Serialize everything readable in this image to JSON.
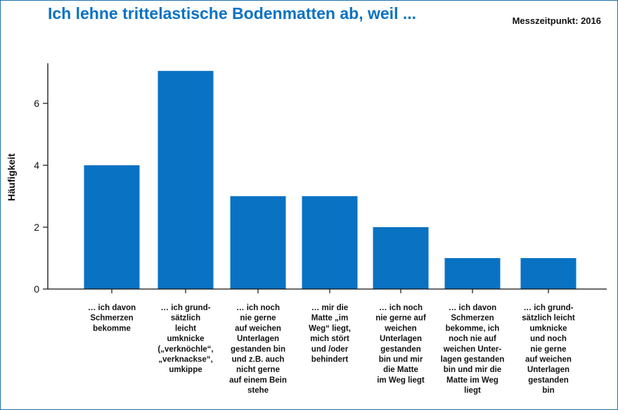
{
  "header": {
    "title": "Ich lehne trittelastische Bodenmatten ab, weil ...",
    "measurement": "Messzeitpunkt: 2016"
  },
  "colors": {
    "bar": "#0a72c3",
    "title": "#0a72c3",
    "axis": "#111111"
  },
  "chart_data": {
    "type": "bar",
    "title": "Ich lehne trittelastische Bodenmatten ab, weil ...",
    "xlabel": "",
    "ylabel": "Häufigkeit",
    "ylim": [
      0,
      7.3
    ],
    "yticks": [
      0,
      2,
      4,
      6
    ],
    "grid": false,
    "categories": [
      [
        "… ich davon",
        "Schmerzen",
        "bekomme"
      ],
      [
        "… ich grund-",
        "sätzlich",
        "leicht",
        "umknicke",
        "(„verknöchle“,",
        "„verknackse“,",
        "umkippe"
      ],
      [
        "… ich noch",
        "nie gerne",
        "auf weichen",
        "Unterlagen",
        "gestanden bin",
        "und z.B. auch",
        "nicht gerne",
        "auf einem Bein",
        "stehe"
      ],
      [
        "… mir die",
        "Matte „im",
        "Weg“ liegt,",
        "mich stört",
        "und /oder",
        "behindert"
      ],
      [
        "… ich noch",
        "nie gerne auf",
        "weichen",
        "Unterlagen",
        "gestanden",
        "bin und mir",
        "die Matte",
        "im Weg liegt"
      ],
      [
        "… ich davon",
        "Schmerzen",
        "bekomme, ich",
        "noch nie auf",
        "weichen Unter-",
        "lagen gestanden",
        "bin und mir die",
        "Matte im Weg",
        "liegt"
      ],
      [
        "… ich grund-",
        "sätzlich leicht",
        "umknicke",
        "und noch",
        "nie gerne",
        "auf weichen",
        "Unterlagen",
        "gestanden",
        "bin"
      ]
    ],
    "values": [
      4,
      7.05,
      3,
      3,
      2,
      1,
      1
    ]
  }
}
